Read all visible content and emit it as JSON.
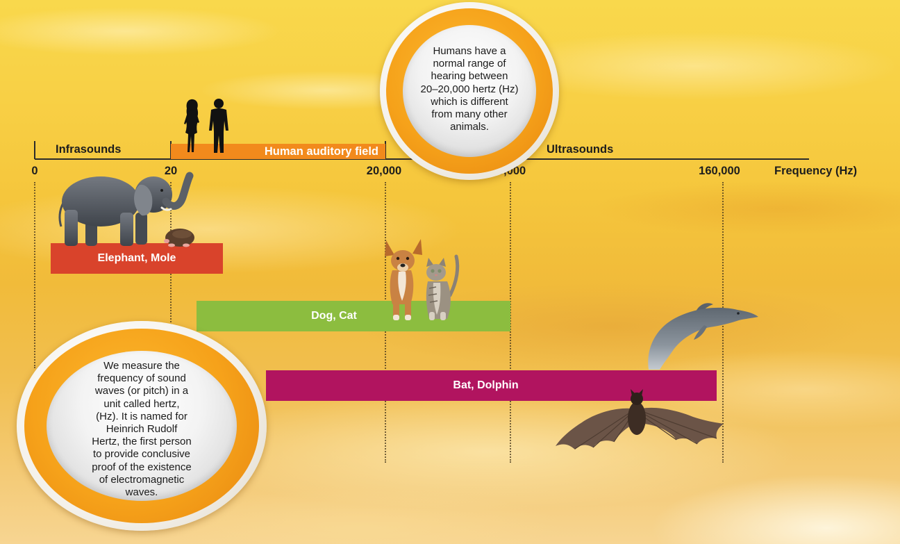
{
  "axis": {
    "infrasounds": "Infrasounds",
    "human_field": "Human auditory field",
    "ultrasounds": "Ultrasounds",
    "ticks": [
      "0",
      "20",
      "20,000",
      "40,000",
      "160,000"
    ],
    "unit_label": "Frequency (Hz)"
  },
  "ranges": [
    {
      "label": "Elephant, Mole",
      "color": "#d9432b"
    },
    {
      "label": "Dog, Cat",
      "color": "#8cbd3f"
    },
    {
      "label": "Bat, Dolphin",
      "color": "#b1145f"
    }
  ],
  "colors": {
    "human_field": "#f28a1c"
  },
  "callouts": {
    "top": {
      "lines": [
        "Humans have a",
        "normal range of",
        "hearing between",
        "20–20,000 hertz (Hz)",
        "which is different",
        "from many other",
        "animals."
      ]
    },
    "bottom": {
      "lines": [
        "We measure the",
        "frequency of sound",
        "waves (or pitch) in a",
        "unit called hertz,",
        "(Hz). It is named for",
        "Heinrich Rudolf",
        "Hertz, the first person",
        "to provide conclusive",
        "proof of the existence",
        "of electromagnetic",
        "waves."
      ]
    }
  },
  "icons": {
    "people": "people-silhouette-icon",
    "elephant": "elephant-icon",
    "mole": "mole-icon",
    "dog": "dog-icon",
    "cat": "cat-icon",
    "dolphin": "dolphin-icon",
    "bat": "bat-icon"
  }
}
